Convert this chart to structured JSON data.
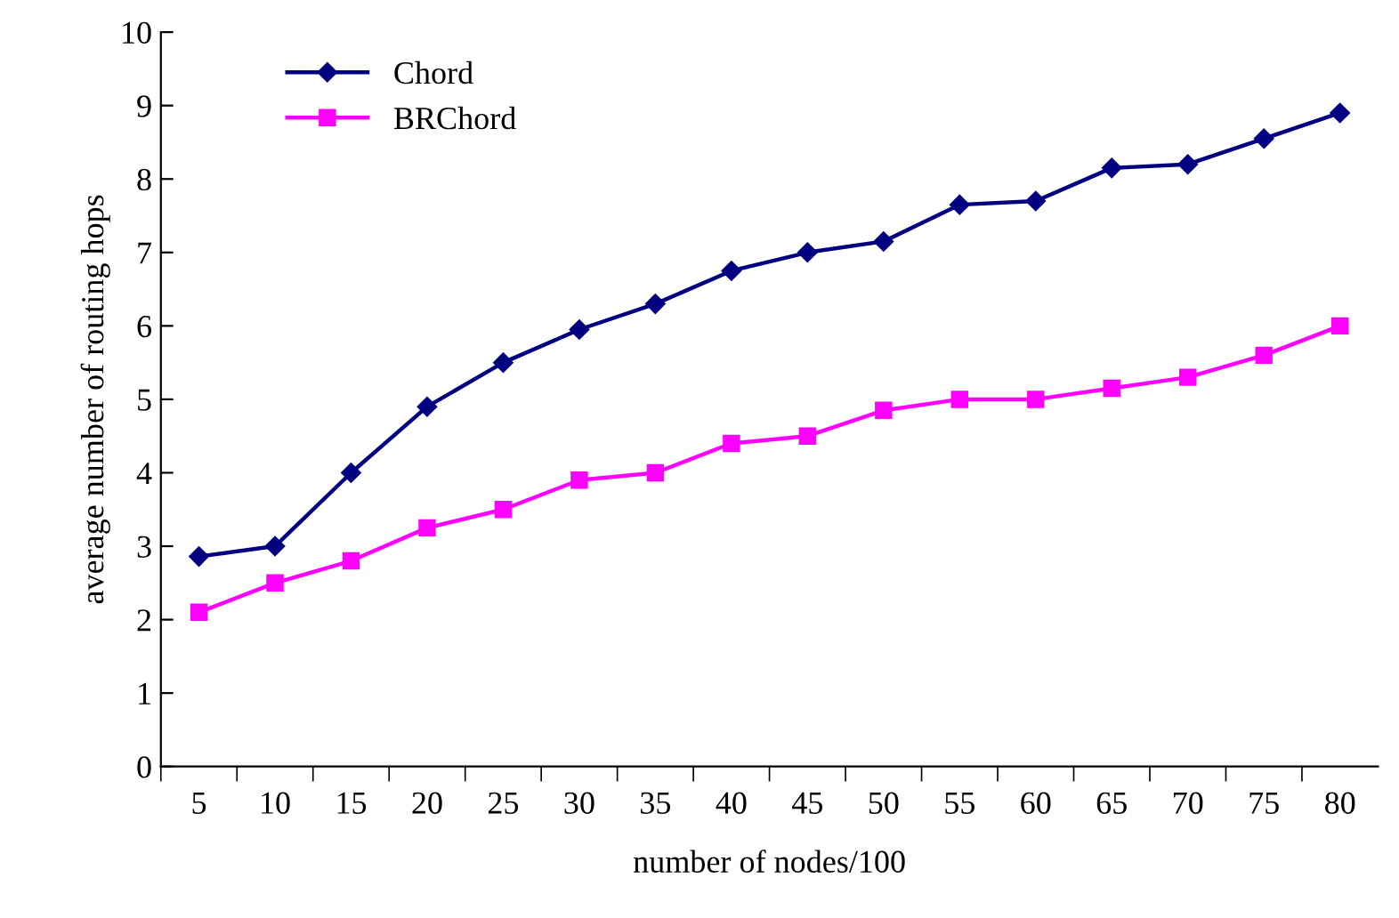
{
  "chart_data": {
    "type": "line",
    "xlabel": "number of nodes/100",
    "ylabel": "average number of routing hops",
    "categories": [
      "5",
      "10",
      "15",
      "20",
      "25",
      "30",
      "35",
      "40",
      "45",
      "50",
      "55",
      "60",
      "65",
      "70",
      "75",
      "80"
    ],
    "series": [
      {
        "name": "Chord",
        "color": "#000080",
        "marker": "diamond",
        "values": [
          2.86,
          3.0,
          4.0,
          4.9,
          5.5,
          5.95,
          6.3,
          6.75,
          7.0,
          7.15,
          7.65,
          7.7,
          8.15,
          8.2,
          8.55,
          8.9
        ]
      },
      {
        "name": "BRChord",
        "color": "#ff00ff",
        "marker": "square",
        "values": [
          2.1,
          2.5,
          2.8,
          3.25,
          3.5,
          3.9,
          4.0,
          4.4,
          4.5,
          4.85,
          5.0,
          5.0,
          5.15,
          5.3,
          5.6,
          6.0
        ]
      }
    ],
    "ylim": [
      0,
      10
    ],
    "yticks": [
      0,
      1,
      2,
      3,
      4,
      5,
      6,
      7,
      8,
      9,
      10
    ],
    "grid": false,
    "legend": "top left"
  }
}
